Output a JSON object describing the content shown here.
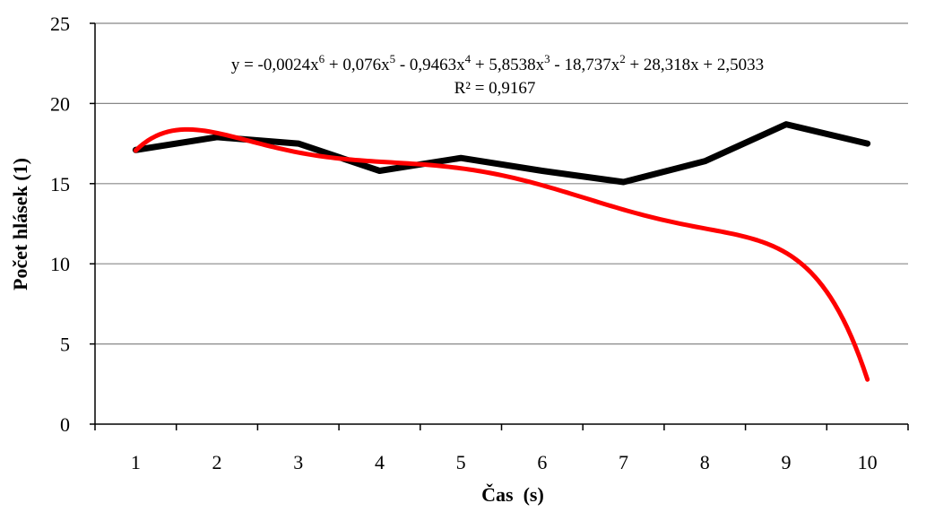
{
  "chart_data": {
    "type": "line",
    "xlabel": "Čas  (s)",
    "ylabel": "Počet hlásek (1)",
    "categories": [
      "1",
      "2",
      "3",
      "4",
      "5",
      "6",
      "7",
      "8",
      "9",
      "10"
    ],
    "x": [
      1,
      2,
      3,
      4,
      5,
      6,
      7,
      8,
      9,
      10
    ],
    "ylim": [
      0,
      25
    ],
    "yticks": [
      0,
      5,
      10,
      15,
      20,
      25
    ],
    "ytick_labels": [
      "0",
      "5",
      "10",
      "15",
      "20",
      "25"
    ],
    "grid": true,
    "legend": "none",
    "series": [
      {
        "values": [
          17.1,
          17.9,
          17.5,
          15.8,
          16.6,
          15.8,
          15.1,
          16.4,
          18.7,
          17.5
        ],
        "color": "#000000"
      }
    ],
    "trendline": {
      "kind": "polynomial",
      "order": 6,
      "coefficients": [
        -0.0024,
        0.076,
        -0.9463,
        5.8538,
        -18.737,
        28.318,
        2.5033
      ],
      "color": "#ff0000"
    },
    "annotations": {
      "equation_parts": [
        "y = -0,0024x",
        "6",
        " + 0,076x",
        "5",
        " - 0,9463x",
        "4",
        " + 5,8538x",
        "3",
        " - 18,737x",
        "2",
        " + 28,318x + 2,5033"
      ],
      "r2": "R² = 0,9167"
    },
    "colors": {
      "series": "#000000",
      "trendline": "#ff0000",
      "grid": "#888888"
    }
  }
}
